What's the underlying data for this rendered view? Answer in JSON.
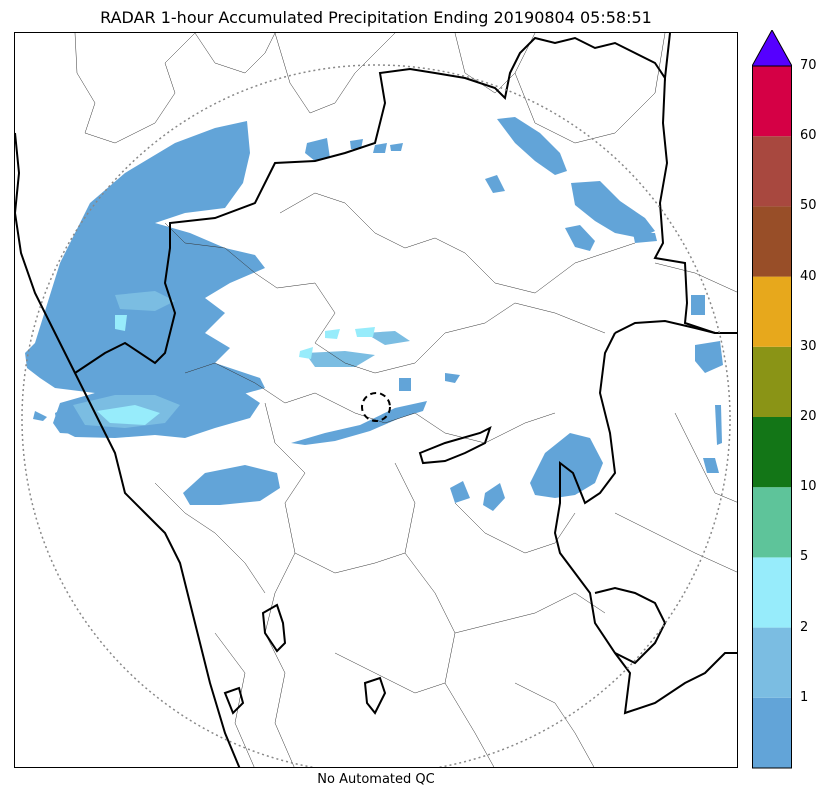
{
  "title": "RADAR 1-hour Accumulated Precipitation Ending 20190804 05:58:51",
  "footer": "No Automated QC",
  "colorbar": {
    "extend": "max",
    "extend_color": "#5500ff",
    "bins": [
      {
        "color": "#62a4d8"
      },
      {
        "color": "#7bbde2"
      },
      {
        "color": "#97ecfb"
      },
      {
        "color": "#5ec49a"
      },
      {
        "color": "#137617"
      },
      {
        "color": "#8a9416"
      },
      {
        "color": "#e7a81c"
      },
      {
        "color": "#984e28"
      },
      {
        "color": "#a8483f"
      },
      {
        "color": "#d50045"
      }
    ],
    "tick_labels": [
      "1",
      "2",
      "5",
      "10",
      "20",
      "30",
      "40",
      "50",
      "60",
      "70"
    ]
  },
  "map": {
    "range_ring": "dotted",
    "radar_site_marker": "dashed-circle",
    "precipitation_colors": {
      "light": "#62a4d8",
      "moderate": "#7bbde2",
      "heavy": "#97ecfb"
    }
  }
}
